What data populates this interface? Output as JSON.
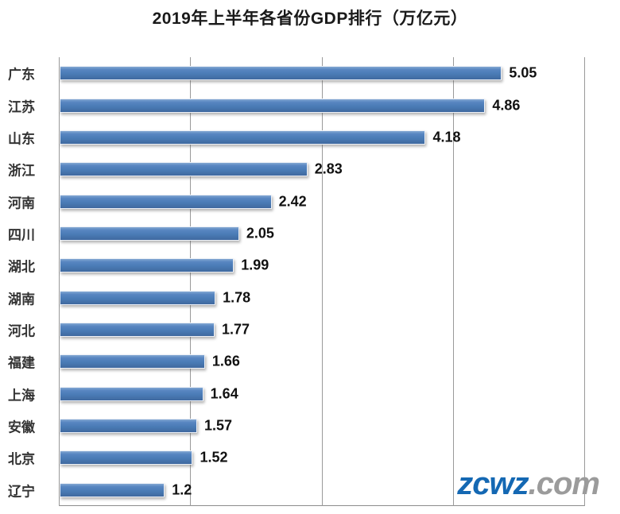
{
  "title": "2019年上半年各省份GDP排行（万亿元）",
  "watermark": {
    "brand": "zcwz",
    "suffix": ".com",
    "brand_color": "#1468b3",
    "suffix_color": "#9b9b9b"
  },
  "chart_data": {
    "type": "bar",
    "orientation": "horizontal",
    "title": "2019年上半年各省份GDP排行（万亿元）",
    "categories": [
      "广东",
      "江苏",
      "山东",
      "浙江",
      "河南",
      "四川",
      "湖北",
      "湖南",
      "河北",
      "福建",
      "上海",
      "安徽",
      "北京",
      "辽宁"
    ],
    "values": [
      5.05,
      4.86,
      4.18,
      2.83,
      2.42,
      2.05,
      1.99,
      1.78,
      1.77,
      1.66,
      1.64,
      1.57,
      1.52,
      1.2
    ],
    "value_labels": [
      "5.05",
      "4.86",
      "4.18",
      "2.83",
      "2.42",
      "2.05",
      "1.99",
      "1.78",
      "1.77",
      "1.66",
      "1.64",
      "1.57",
      "1.52",
      "1.2"
    ],
    "xlabel": "",
    "ylabel": "",
    "xlim": [
      0,
      6
    ],
    "gridline_values": [
      0,
      1.5,
      3,
      4.5,
      6
    ],
    "grid": "vertical-only",
    "legend": "none",
    "bar_color": "#4f81bd",
    "gridline_color": "#9a9a9a"
  }
}
